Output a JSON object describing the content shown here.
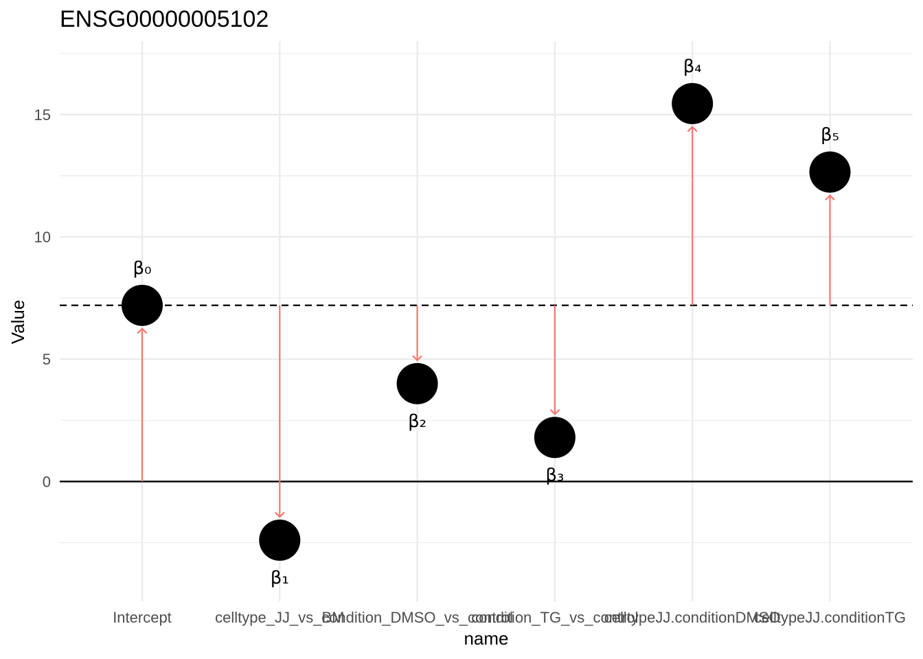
{
  "chart_data": {
    "type": "scatter",
    "title": "ENSG00000005102",
    "xlabel": "name",
    "ylabel": "Value",
    "categories": [
      "Intercept",
      "celltype_JJ_vs_BM",
      "condition_DMSO_vs_control",
      "condition_TG_vs_control",
      "celltypeJJ.conditionDMSO",
      "celltypeJJ.conditionTG"
    ],
    "tick_labels": [
      "Intercept",
      "celltype_JJ_vs_BM",
      "condition_DMSO_vs_control",
      "condition_TG_vs_control",
      "celltypeJJ.conditionDMSO",
      "celltypeJJ.conditionTG"
    ],
    "points": [
      {
        "category": "Intercept",
        "value": 7.2,
        "label": "β₀",
        "arrow_from": 0,
        "label_position": "above"
      },
      {
        "category": "celltype_JJ_vs_BM",
        "value": -2.4,
        "label": "β₁",
        "arrow_from": 7.2,
        "label_position": "below"
      },
      {
        "category": "condition_DMSO_vs_control",
        "value": 4.0,
        "label": "β₂",
        "arrow_from": 7.2,
        "label_position": "below"
      },
      {
        "category": "condition_TG_vs_control",
        "value": 1.8,
        "label": "β₃",
        "arrow_from": 7.2,
        "label_position": "below"
      },
      {
        "category": "celltypeJJ.conditionDMSO",
        "value": 15.45,
        "label": "β₄",
        "arrow_from": 7.2,
        "label_position": "above"
      },
      {
        "category": "celltypeJJ.conditionTG",
        "value": 12.65,
        "label": "β₅",
        "arrow_from": 7.2,
        "label_position": "above"
      }
    ],
    "reference_lines": [
      {
        "value": 0,
        "style": "solid"
      },
      {
        "value": 7.2,
        "style": "dashed"
      }
    ],
    "yticks": [
      0,
      5,
      10,
      15
    ],
    "ylim": [
      -4.9,
      18
    ],
    "grid": true,
    "colors": {
      "arrow": "#f8766d",
      "point": "#000000",
      "grid": "#ebebeb",
      "tick_text": "#4d4d4d"
    }
  }
}
